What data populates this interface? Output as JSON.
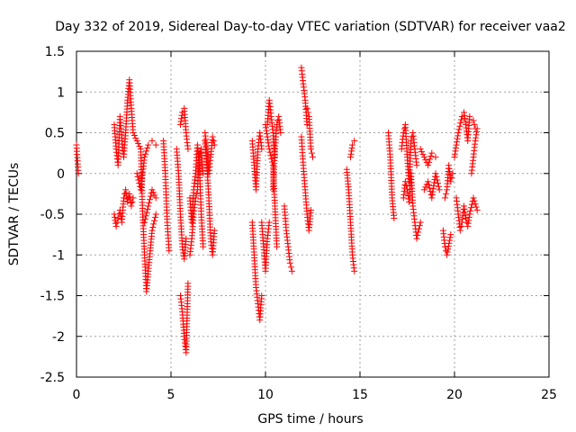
{
  "chart_data": {
    "type": "scatter",
    "title": "Day 332 of 2019, Sidereal Day-to-day VTEC variation (SDTVAR) for receiver vaa2",
    "xlabel": "GPS time / hours",
    "ylabel": "SDTVAR / TECUs",
    "xlim": [
      0,
      25
    ],
    "ylim": [
      -2.5,
      1.5
    ],
    "xticks": [
      0,
      5,
      10,
      15,
      20,
      25
    ],
    "yticks": [
      -2.5,
      -2,
      -1.5,
      -1,
      -0.5,
      0,
      0.5,
      1,
      1.5
    ],
    "xtick_labels": [
      "0",
      "5",
      "10",
      "15",
      "20",
      "25"
    ],
    "ytick_labels": [
      "-2.5",
      "-2",
      "-1.5",
      "-1",
      "-0.5",
      "0",
      "0.5",
      "1",
      "1.5"
    ],
    "grid": true,
    "marker": "plus",
    "series_color": "#ff0000",
    "segments": [
      {
        "name": "seg-0",
        "x": [
          0.0,
          0.1
        ],
        "y": [
          0.35,
          0.0
        ]
      },
      {
        "name": "seg-1",
        "x": [
          2.0,
          2.1,
          2.2,
          2.3,
          2.4,
          2.5,
          2.6,
          2.7,
          2.8,
          2.9,
          3.0
        ],
        "y": [
          0.6,
          0.3,
          0.1,
          0.7,
          0.4,
          0.2,
          0.5,
          0.9,
          1.15,
          0.8,
          0.5
        ]
      },
      {
        "name": "seg-2",
        "x": [
          2.0,
          2.1,
          2.2,
          2.3,
          2.4,
          2.5,
          2.6,
          2.7,
          2.8,
          2.9,
          3.0
        ],
        "y": [
          -0.5,
          -0.65,
          -0.55,
          -0.45,
          -0.6,
          -0.3,
          -0.2,
          -0.35,
          -0.25,
          -0.4,
          -0.3
        ]
      },
      {
        "name": "seg-3",
        "x": [
          3.0,
          3.2,
          3.4,
          3.5,
          3.6,
          3.7,
          3.8,
          4.0,
          4.2
        ],
        "y": [
          0.5,
          0.4,
          0.3,
          -0.5,
          -1.0,
          -1.45,
          -1.2,
          -0.7,
          -0.5
        ]
      },
      {
        "name": "seg-4",
        "x": [
          3.2,
          3.4,
          3.6,
          3.8,
          4.0,
          4.2
        ],
        "y": [
          0.0,
          -0.2,
          0.2,
          0.35,
          0.4,
          0.35
        ]
      },
      {
        "name": "seg-5",
        "x": [
          3.6,
          3.8,
          4.0,
          4.2
        ],
        "y": [
          -0.6,
          -0.4,
          -0.2,
          -0.3
        ]
      },
      {
        "name": "seg-6",
        "x": [
          4.6,
          4.7,
          4.8,
          4.9
        ],
        "y": [
          0.4,
          0.0,
          -0.6,
          -0.95
        ]
      },
      {
        "name": "seg-7",
        "x": [
          5.3,
          5.4,
          5.5,
          5.6,
          5.7,
          5.8
        ],
        "y": [
          0.3,
          0.0,
          -0.5,
          -0.9,
          -1.05,
          -0.8
        ]
      },
      {
        "name": "seg-8",
        "x": [
          5.5,
          5.6,
          5.7,
          5.8,
          5.9
        ],
        "y": [
          -1.5,
          -1.7,
          -2.0,
          -2.2,
          -1.35
        ]
      },
      {
        "name": "seg-9",
        "x": [
          5.5,
          5.6,
          5.7,
          5.8,
          5.9
        ],
        "y": [
          0.6,
          0.75,
          0.8,
          0.5,
          0.3
        ]
      },
      {
        "name": "seg-10",
        "x": [
          6.0,
          6.1,
          6.2,
          6.3,
          6.4,
          6.5,
          6.6,
          6.7
        ],
        "y": [
          -0.3,
          -0.6,
          -0.2,
          0.0,
          0.35,
          0.1,
          -0.5,
          -0.9
        ]
      },
      {
        "name": "seg-11",
        "x": [
          6.0,
          6.1,
          6.2,
          6.3,
          6.4,
          6.5,
          6.6,
          6.7
        ],
        "y": [
          -1.0,
          -0.8,
          -0.5,
          -0.3,
          -0.2,
          0.2,
          0.3,
          0.0
        ]
      },
      {
        "name": "seg-12",
        "x": [
          6.8,
          6.9,
          7.0,
          7.1,
          7.2,
          7.3
        ],
        "y": [
          0.4,
          0.1,
          -0.3,
          -0.8,
          -1.0,
          -0.7
        ]
      },
      {
        "name": "seg-13",
        "x": [
          6.8,
          6.9,
          7.0,
          7.1,
          7.2,
          7.3
        ],
        "y": [
          0.5,
          0.3,
          0.0,
          0.2,
          0.45,
          0.35
        ]
      },
      {
        "name": "seg-14",
        "x": [
          9.3,
          9.4,
          9.5,
          9.6,
          9.7,
          9.8
        ],
        "y": [
          -0.6,
          -1.0,
          -1.4,
          -1.6,
          -1.8,
          -1.5
        ]
      },
      {
        "name": "seg-15",
        "x": [
          9.3,
          9.4,
          9.5,
          9.6,
          9.7,
          9.8
        ],
        "y": [
          0.4,
          0.1,
          -0.2,
          0.3,
          0.5,
          0.3
        ]
      },
      {
        "name": "seg-16",
        "x": [
          9.8,
          9.9,
          10.0,
          10.1,
          10.2
        ],
        "y": [
          -0.6,
          -0.9,
          -1.2,
          -0.8,
          -0.6
        ]
      },
      {
        "name": "seg-17",
        "x": [
          10.0,
          10.2,
          10.4,
          10.5,
          10.6
        ],
        "y": [
          0.6,
          0.3,
          0.1,
          -0.4,
          -0.9
        ]
      },
      {
        "name": "seg-18",
        "x": [
          10.1,
          10.2,
          10.3,
          10.4,
          10.5
        ],
        "y": [
          0.6,
          0.9,
          0.7,
          0.5,
          0.2
        ]
      },
      {
        "name": "seg-19",
        "x": [
          10.4,
          10.5,
          10.6,
          10.7,
          10.8
        ],
        "y": [
          -0.2,
          0.3,
          0.6,
          0.7,
          0.5
        ]
      },
      {
        "name": "seg-20",
        "x": [
          11.0,
          11.1,
          11.2,
          11.3,
          11.4
        ],
        "y": [
          -0.4,
          -0.7,
          -0.9,
          -1.1,
          -1.2
        ]
      },
      {
        "name": "seg-21",
        "x": [
          11.9,
          12.0,
          12.1,
          12.2
        ],
        "y": [
          1.3,
          1.1,
          0.9,
          0.6
        ]
      },
      {
        "name": "seg-22",
        "x": [
          11.9,
          12.0,
          12.1,
          12.2,
          12.3,
          12.4
        ],
        "y": [
          0.45,
          0.1,
          -0.2,
          -0.5,
          -0.7,
          -0.45
        ]
      },
      {
        "name": "seg-23",
        "x": [
          12.2,
          12.3,
          12.4,
          12.5
        ],
        "y": [
          0.8,
          0.7,
          0.3,
          0.2
        ]
      },
      {
        "name": "seg-24",
        "x": [
          14.3,
          14.4,
          14.5,
          14.6,
          14.7
        ],
        "y": [
          0.05,
          -0.2,
          -0.6,
          -1.0,
          -1.2
        ]
      },
      {
        "name": "seg-25",
        "x": [
          14.5,
          14.6,
          14.7
        ],
        "y": [
          0.2,
          0.35,
          0.4
        ]
      },
      {
        "name": "seg-26",
        "x": [
          16.5,
          16.6,
          16.7,
          16.8
        ],
        "y": [
          0.5,
          0.2,
          -0.3,
          -0.55
        ]
      },
      {
        "name": "seg-27",
        "x": [
          17.2,
          17.3,
          17.4,
          17.5,
          17.6,
          17.7,
          17.8,
          17.9,
          18.0
        ],
        "y": [
          0.3,
          0.5,
          0.6,
          0.2,
          -0.1,
          0.4,
          0.5,
          0.3,
          0.1
        ]
      },
      {
        "name": "seg-28",
        "x": [
          17.3,
          17.4,
          17.5,
          17.6,
          17.7,
          17.8,
          17.9,
          18.0,
          18.2
        ],
        "y": [
          -0.3,
          -0.1,
          -0.2,
          -0.35,
          0.0,
          -0.4,
          -0.6,
          -0.8,
          -0.6
        ]
      },
      {
        "name": "seg-29",
        "x": [
          18.2,
          18.4,
          18.6,
          18.8,
          19.0
        ],
        "y": [
          0.3,
          0.2,
          0.1,
          0.25,
          0.2
        ]
      },
      {
        "name": "seg-30",
        "x": [
          18.4,
          18.6,
          18.8,
          19.0,
          19.2
        ],
        "y": [
          -0.2,
          -0.1,
          -0.3,
          0.0,
          -0.2
        ]
      },
      {
        "name": "seg-31",
        "x": [
          19.4,
          19.5,
          19.6,
          19.8
        ],
        "y": [
          -0.7,
          -0.9,
          -1.0,
          -0.75
        ]
      },
      {
        "name": "seg-32",
        "x": [
          19.5,
          19.6,
          19.7,
          19.8,
          19.9
        ],
        "y": [
          -0.3,
          -0.2,
          0.1,
          -0.1,
          0.0
        ]
      },
      {
        "name": "seg-33",
        "x": [
          20.0,
          20.2,
          20.4,
          20.5,
          20.6,
          20.7,
          20.8,
          21.0,
          21.1
        ],
        "y": [
          0.2,
          0.5,
          0.7,
          0.75,
          0.6,
          0.4,
          0.7,
          0.65,
          0.55
        ]
      },
      {
        "name": "seg-34",
        "x": [
          20.1,
          20.2,
          20.3,
          20.4,
          20.5,
          20.6,
          20.7,
          20.8,
          21.0,
          21.2
        ],
        "y": [
          -0.3,
          -0.5,
          -0.7,
          -0.6,
          -0.4,
          -0.55,
          -0.65,
          -0.5,
          -0.3,
          -0.45
        ]
      },
      {
        "name": "seg-35",
        "x": [
          20.9,
          21.0,
          21.1,
          21.2
        ],
        "y": [
          0.0,
          0.2,
          0.4,
          0.55
        ]
      }
    ]
  }
}
